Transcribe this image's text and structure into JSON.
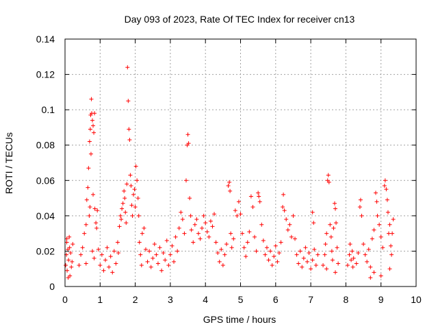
{
  "chart_data": {
    "type": "scatter",
    "title": "Day 093 of 2023, Rate Of TEC Index for receiver cn13",
    "xlabel": "GPS time / hours",
    "ylabel": "ROTI / TECUs",
    "xlim": [
      0,
      10
    ],
    "ylim": [
      0,
      0.14
    ],
    "xticks": [
      0,
      1,
      2,
      3,
      4,
      5,
      6,
      7,
      8,
      9,
      10
    ],
    "yticks": [
      0,
      0.02,
      0.04,
      0.06,
      0.08,
      0.1,
      0.12,
      0.14
    ],
    "ytick_labels": [
      "0",
      "0.02",
      "0.04",
      "0.06",
      "0.08",
      "0.1",
      "0.12",
      "0.14"
    ],
    "grid": true,
    "marker": "+",
    "color": "#ff0000",
    "series": [
      {
        "name": "cn13",
        "points": [
          [
            0.02,
            0.012
          ],
          [
            0.04,
            0.018
          ],
          [
            0.05,
            0.025
          ],
          [
            0.06,
            0.009
          ],
          [
            0.08,
            0.021
          ],
          [
            0.1,
            0.015
          ],
          [
            0.12,
            0.028
          ],
          [
            0.14,
            0.006
          ],
          [
            0.16,
            0.019
          ],
          [
            0.18,
            0.011
          ],
          [
            0.2,
            0.014
          ],
          [
            0.22,
            0.024
          ],
          [
            0.05,
            0.027
          ],
          [
            0.09,
            0.005
          ],
          [
            0.13,
            0.022
          ],
          [
            0.4,
            0.012
          ],
          [
            0.45,
            0.018
          ],
          [
            0.5,
            0.022
          ],
          [
            0.55,
            0.03
          ],
          [
            0.6,
            0.035
          ],
          [
            0.62,
            0.049
          ],
          [
            0.65,
            0.056
          ],
          [
            0.67,
            0.067
          ],
          [
            0.7,
            0.082
          ],
          [
            0.72,
            0.089
          ],
          [
            0.73,
            0.097
          ],
          [
            0.75,
            0.106
          ],
          [
            0.76,
            0.098
          ],
          [
            0.78,
            0.094
          ],
          [
            0.8,
            0.091
          ],
          [
            0.82,
            0.087
          ],
          [
            0.84,
            0.098
          ],
          [
            0.74,
            0.075
          ],
          [
            0.71,
            0.045
          ],
          [
            0.69,
            0.04
          ],
          [
            0.8,
            0.052
          ],
          [
            0.85,
            0.044
          ],
          [
            0.88,
            0.036
          ],
          [
            0.9,
            0.033
          ],
          [
            0.92,
            0.043
          ],
          [
            0.78,
            0.02
          ],
          [
            0.83,
            0.016
          ],
          [
            0.6,
            0.013
          ],
          [
            0.95,
            0.021
          ],
          [
            1.0,
            0.012
          ],
          [
            1.05,
            0.018
          ],
          [
            1.1,
            0.009
          ],
          [
            1.15,
            0.015
          ],
          [
            1.2,
            0.022
          ],
          [
            1.25,
            0.011
          ],
          [
            1.3,
            0.017
          ],
          [
            1.35,
            0.008
          ],
          [
            1.4,
            0.02
          ],
          [
            1.45,
            0.013
          ],
          [
            1.5,
            0.025
          ],
          [
            1.52,
            0.019
          ],
          [
            1.55,
            0.034
          ],
          [
            1.58,
            0.04
          ],
          [
            1.6,
            0.038
          ],
          [
            1.62,
            0.044
          ],
          [
            1.65,
            0.047
          ],
          [
            1.68,
            0.054
          ],
          [
            1.7,
            0.05
          ],
          [
            1.72,
            0.042
          ],
          [
            1.74,
            0.036
          ],
          [
            1.76,
            0.058
          ],
          [
            1.78,
            0.124
          ],
          [
            1.8,
            0.105
          ],
          [
            1.82,
            0.089
          ],
          [
            1.84,
            0.083
          ],
          [
            1.86,
            0.063
          ],
          [
            1.88,
            0.057
          ],
          [
            1.9,
            0.046
          ],
          [
            1.92,
            0.04
          ],
          [
            1.95,
            0.052
          ],
          [
            1.98,
            0.055
          ],
          [
            2.0,
            0.045
          ],
          [
            2.02,
            0.068
          ],
          [
            2.05,
            0.06
          ],
          [
            2.08,
            0.05
          ],
          [
            2.1,
            0.04
          ],
          [
            2.12,
            0.025
          ],
          [
            2.15,
            0.018
          ],
          [
            2.18,
            0.012
          ],
          [
            2.2,
            0.03
          ],
          [
            2.25,
            0.033
          ],
          [
            2.3,
            0.021
          ],
          [
            2.35,
            0.014
          ],
          [
            2.4,
            0.02
          ],
          [
            2.45,
            0.011
          ],
          [
            2.5,
            0.016
          ],
          [
            2.55,
            0.024
          ],
          [
            2.6,
            0.018
          ],
          [
            2.65,
            0.013
          ],
          [
            2.7,
            0.022
          ],
          [
            2.75,
            0.009
          ],
          [
            2.8,
            0.019
          ],
          [
            2.85,
            0.015
          ],
          [
            2.9,
            0.026
          ],
          [
            2.95,
            0.012
          ],
          [
            3.0,
            0.018
          ],
          [
            3.05,
            0.023
          ],
          [
            3.1,
            0.014
          ],
          [
            3.15,
            0.028
          ],
          [
            3.2,
            0.02
          ],
          [
            3.25,
            0.033
          ],
          [
            3.3,
            0.042
          ],
          [
            3.35,
            0.038
          ],
          [
            3.4,
            0.03
          ],
          [
            3.45,
            0.06
          ],
          [
            3.48,
            0.08
          ],
          [
            3.5,
            0.086
          ],
          [
            3.52,
            0.081
          ],
          [
            3.55,
            0.05
          ],
          [
            3.58,
            0.04
          ],
          [
            3.6,
            0.032
          ],
          [
            3.65,
            0.025
          ],
          [
            3.7,
            0.035
          ],
          [
            3.75,
            0.038
          ],
          [
            3.8,
            0.03
          ],
          [
            3.85,
            0.027
          ],
          [
            3.9,
            0.033
          ],
          [
            3.95,
            0.04
          ],
          [
            4.0,
            0.036
          ],
          [
            4.05,
            0.031
          ],
          [
            4.1,
            0.028
          ],
          [
            4.15,
            0.037
          ],
          [
            4.2,
            0.034
          ],
          [
            4.25,
            0.041
          ],
          [
            4.3,
            0.025
          ],
          [
            4.35,
            0.019
          ],
          [
            4.4,
            0.014
          ],
          [
            4.45,
            0.021
          ],
          [
            4.5,
            0.012
          ],
          [
            4.55,
            0.018
          ],
          [
            4.6,
            0.024
          ],
          [
            4.65,
            0.057
          ],
          [
            4.68,
            0.059
          ],
          [
            4.7,
            0.054
          ],
          [
            4.72,
            0.03
          ],
          [
            4.75,
            0.022
          ],
          [
            4.8,
            0.027
          ],
          [
            4.85,
            0.043
          ],
          [
            4.9,
            0.04
          ],
          [
            4.95,
            0.048
          ],
          [
            5.0,
            0.041
          ],
          [
            5.05,
            0.03
          ],
          [
            5.1,
            0.022
          ],
          [
            5.15,
            0.017
          ],
          [
            5.2,
            0.025
          ],
          [
            5.25,
            0.031
          ],
          [
            5.3,
            0.051
          ],
          [
            5.35,
            0.045
          ],
          [
            5.4,
            0.028
          ],
          [
            5.45,
            0.02
          ],
          [
            5.5,
            0.053
          ],
          [
            5.52,
            0.051
          ],
          [
            5.55,
            0.048
          ],
          [
            5.6,
            0.035
          ],
          [
            5.65,
            0.026
          ],
          [
            5.7,
            0.018
          ],
          [
            5.75,
            0.022
          ],
          [
            5.8,
            0.015
          ],
          [
            5.85,
            0.02
          ],
          [
            5.9,
            0.012
          ],
          [
            5.95,
            0.017
          ],
          [
            6.0,
            0.023
          ],
          [
            6.05,
            0.014
          ],
          [
            6.1,
            0.019
          ],
          [
            6.15,
            0.025
          ],
          [
            6.2,
            0.045
          ],
          [
            6.22,
            0.052
          ],
          [
            6.25,
            0.043
          ],
          [
            6.3,
            0.038
          ],
          [
            6.35,
            0.032
          ],
          [
            6.4,
            0.035
          ],
          [
            6.45,
            0.028
          ],
          [
            6.5,
            0.04
          ],
          [
            6.55,
            0.027
          ],
          [
            6.6,
            0.018
          ],
          [
            6.65,
            0.013
          ],
          [
            6.7,
            0.02
          ],
          [
            6.75,
            0.011
          ],
          [
            6.8,
            0.016
          ],
          [
            6.85,
            0.022
          ],
          [
            6.9,
            0.014
          ],
          [
            6.95,
            0.019
          ],
          [
            7.0,
            0.01
          ],
          [
            7.05,
            0.015
          ],
          [
            7.1,
            0.021
          ],
          [
            7.15,
            0.012
          ],
          [
            7.2,
            0.018
          ],
          [
            7.05,
            0.042
          ],
          [
            7.08,
            0.036
          ],
          [
            7.35,
            0.012
          ],
          [
            7.4,
            0.018
          ],
          [
            7.42,
            0.024
          ],
          [
            7.45,
            0.03
          ],
          [
            7.48,
            0.06
          ],
          [
            7.5,
            0.063
          ],
          [
            7.52,
            0.059
          ],
          [
            7.55,
            0.035
          ],
          [
            7.58,
            0.028
          ],
          [
            7.6,
            0.02
          ],
          [
            7.62,
            0.015
          ],
          [
            7.65,
            0.033
          ],
          [
            7.68,
            0.047
          ],
          [
            7.7,
            0.044
          ],
          [
            7.72,
            0.036
          ],
          [
            7.75,
            0.022
          ],
          [
            7.78,
            0.013
          ],
          [
            7.7,
            0.008
          ],
          [
            7.45,
            0.01
          ],
          [
            8.05,
            0.012
          ],
          [
            8.1,
            0.018
          ],
          [
            8.12,
            0.024
          ],
          [
            8.15,
            0.015
          ],
          [
            8.18,
            0.02
          ],
          [
            8.2,
            0.011
          ],
          [
            8.22,
            0.016
          ],
          [
            8.3,
            0.013
          ],
          [
            8.35,
            0.019
          ],
          [
            8.4,
            0.045
          ],
          [
            8.42,
            0.049
          ],
          [
            8.45,
            0.04
          ],
          [
            8.5,
            0.024
          ],
          [
            8.55,
            0.018
          ],
          [
            8.6,
            0.014
          ],
          [
            8.65,
            0.021
          ],
          [
            8.7,
            0.011
          ],
          [
            8.75,
            0.027
          ],
          [
            8.8,
            0.032
          ],
          [
            8.85,
            0.053
          ],
          [
            8.88,
            0.048
          ],
          [
            8.9,
            0.04
          ],
          [
            8.95,
            0.035
          ],
          [
            9.0,
            0.028
          ],
          [
            9.05,
            0.022
          ],
          [
            9.1,
            0.057
          ],
          [
            9.12,
            0.06
          ],
          [
            9.15,
            0.055
          ],
          [
            9.18,
            0.049
          ],
          [
            9.2,
            0.042
          ],
          [
            9.22,
            0.03
          ],
          [
            9.25,
            0.035
          ],
          [
            9.28,
            0.023
          ],
          [
            9.3,
            0.018
          ],
          [
            9.32,
            0.03
          ],
          [
            9.35,
            0.038
          ],
          [
            8.8,
            0.008
          ],
          [
            8.7,
            0.005
          ],
          [
            9.0,
            0.006
          ],
          [
            9.25,
            0.01
          ]
        ]
      }
    ]
  }
}
